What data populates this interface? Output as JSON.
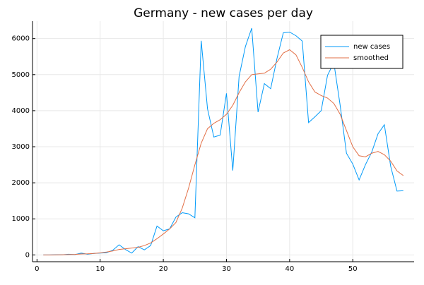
{
  "chart_data": {
    "type": "line",
    "title": "Germany - new cases per day",
    "x": [
      1,
      2,
      3,
      4,
      5,
      6,
      7,
      8,
      9,
      10,
      11,
      12,
      13,
      14,
      15,
      16,
      17,
      18,
      19,
      20,
      21,
      22,
      23,
      24,
      25,
      26,
      27,
      28,
      29,
      30,
      31,
      32,
      33,
      34,
      35,
      36,
      37,
      38,
      39,
      40,
      41,
      42,
      43,
      44,
      45,
      46,
      47,
      48,
      49,
      50,
      51,
      52,
      53,
      54,
      55,
      56,
      57,
      58
    ],
    "series": [
      {
        "name": "new cases",
        "color": "#009af9",
        "values": [
          0,
          0,
          5,
          5,
          20,
          10,
          50,
          20,
          40,
          50,
          60,
          130,
          280,
          150,
          50,
          230,
          140,
          260,
          800,
          670,
          720,
          1050,
          1170,
          1140,
          1030,
          5940,
          4050,
          3270,
          3320,
          4480,
          2340,
          4950,
          5780,
          6290,
          3960,
          4750,
          4610,
          5450,
          6160,
          6180,
          6080,
          5930,
          3670,
          3830,
          4000,
          4980,
          5330,
          4150,
          2820,
          2520,
          2080,
          2500,
          2850,
          3360,
          3610,
          2460,
          1770,
          1780
        ]
      },
      {
        "name": "smoothed",
        "color": "#e26f46",
        "values": [
          0,
          0,
          3,
          5,
          10,
          15,
          25,
          30,
          40,
          55,
          80,
          110,
          150,
          170,
          190,
          210,
          260,
          330,
          450,
          580,
          720,
          900,
          1300,
          1850,
          2500,
          3100,
          3500,
          3650,
          3750,
          3900,
          4150,
          4500,
          4800,
          5000,
          5020,
          5040,
          5150,
          5350,
          5600,
          5690,
          5550,
          5200,
          4800,
          4520,
          4420,
          4350,
          4200,
          3900,
          3450,
          3000,
          2750,
          2720,
          2820,
          2870,
          2780,
          2600,
          2330,
          2200
        ]
      }
    ],
    "xlim": [
      -0.71,
      59.71
    ],
    "xticks": [
      0,
      10,
      20,
      30,
      40,
      50
    ],
    "ylim": [
      -189,
      6483
    ],
    "yticks": [
      0,
      1000,
      2000,
      3000,
      4000,
      5000,
      6000
    ],
    "grid": true,
    "legend": "top-right"
  }
}
